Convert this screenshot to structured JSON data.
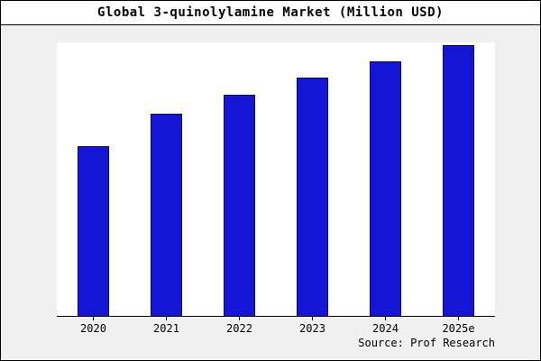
{
  "chart_data": {
    "type": "bar",
    "title": "Global 3-quinolylamine Market (Million USD)",
    "categories": [
      "2020",
      "2021",
      "2022",
      "2023",
      "2024",
      "2025e"
    ],
    "values": [
      62,
      74,
      81,
      87,
      93,
      99
    ],
    "ylim": [
      0,
      100
    ],
    "xlabel": "",
    "ylabel": "",
    "grid": false,
    "legend": "none",
    "bar_color": "#1515d6",
    "bar_border_color": "#00008b",
    "source": "Source: Prof Research"
  }
}
